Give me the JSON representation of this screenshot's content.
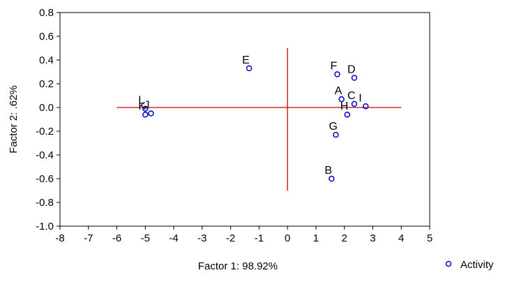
{
  "chart_data": {
    "type": "scatter",
    "xlabel": "Factor 1: 98.92%",
    "ylabel": "Factor 2:  .62%",
    "xlim": [
      -8,
      5
    ],
    "ylim": [
      -1.0,
      0.8
    ],
    "xticks": [
      "-8",
      "-7",
      "-6",
      "-5",
      "-4",
      "-3",
      "-2",
      "-1",
      "0",
      "1",
      "2",
      "3",
      "4",
      "5"
    ],
    "yticks": [
      "-1.0",
      "-0.8",
      "-0.6",
      "-0.4",
      "-0.2",
      "0.0",
      "0.2",
      "0.4",
      "0.6",
      "0.8"
    ],
    "grid": false,
    "legend_position": "bottom-right",
    "series": [
      {
        "name": "Activity",
        "color": "#0000cc",
        "marker": "circle-open",
        "points": [
          {
            "label": "A",
            "x": 1.9,
            "y": 0.07
          },
          {
            "label": "B",
            "x": 1.55,
            "y": -0.6
          },
          {
            "label": "C",
            "x": 2.35,
            "y": 0.03
          },
          {
            "label": "D",
            "x": 2.35,
            "y": 0.25
          },
          {
            "label": "E",
            "x": -1.35,
            "y": 0.33
          },
          {
            "label": "F",
            "x": 1.75,
            "y": 0.28
          },
          {
            "label": "G",
            "x": 1.7,
            "y": -0.23
          },
          {
            "label": "H",
            "x": 2.1,
            "y": -0.06
          },
          {
            "label": "I",
            "x": 2.75,
            "y": 0.01
          },
          {
            "label": "J",
            "x": -4.8,
            "y": -0.05
          },
          {
            "label": "K",
            "x": -5.0,
            "y": -0.06
          },
          {
            "label": "L",
            "x": -5.0,
            "y": -0.01
          }
        ]
      }
    ],
    "reference_lines": [
      {
        "orientation": "horizontal",
        "y": 0.0,
        "from": -6,
        "to": 4,
        "color": "#cc0000"
      },
      {
        "orientation": "vertical",
        "x": 0.0,
        "from": -0.7,
        "to": 0.5,
        "color": "#cc0000"
      }
    ]
  }
}
